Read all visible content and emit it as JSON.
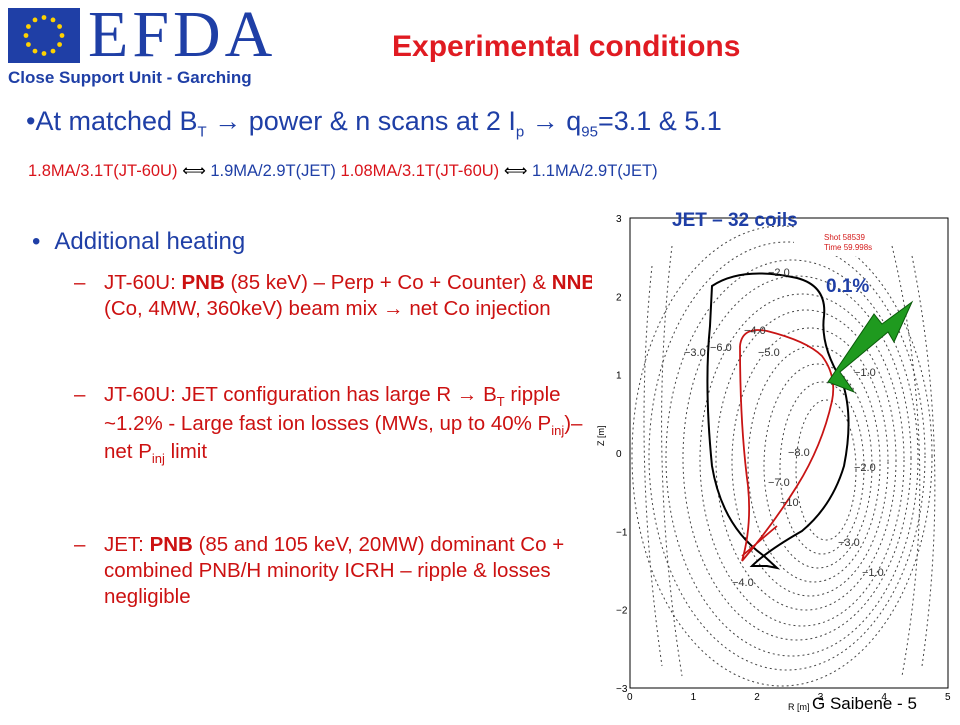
{
  "logo": {
    "word": "EFDA",
    "subtitle": "Close Support Unit - Garching",
    "flag_color": "#1f3fa6"
  },
  "title": "Experimental conditions",
  "lead": {
    "bullet": "•",
    "text_a": "At matched B",
    "sub_a": "T",
    "text_b": " power & n scans at 2 I",
    "sub_b": "p",
    "text_c": " q",
    "sub_c": "95",
    "text_d": "=3.1 & 5.1",
    "arrow": "→"
  },
  "scan_pairs": {
    "pair1_jt": "1.8MA/3.1T(JT-60U)",
    "pair1_jet": "1.9MA/2.9T(JET)",
    "pair2_jt": "1.08MA/3.1T(JT-60U)",
    "pair2_jet": "1.1MA/2.9T(JET)",
    "equiv": "⟺"
  },
  "heating": {
    "heading": "Additional heating",
    "bullet": "•",
    "dash": "–",
    "item1": {
      "a": "JT-60U: ",
      "b": "PNB",
      "c": " (85 keV) – Perp + Co + Counter) & ",
      "d": "NNB",
      "e": " (Co, 4MW, 360keV) beam mix ",
      "f": "net Co injection"
    },
    "item2": {
      "a": "JT-60U: JET configuration has large R ",
      "b": "B",
      "b_sub": "T",
      "c": " ripple ~1.2% - Large fast ion losses (MWs, up to 40% P",
      "c_sub": "inj",
      "d": ")– net P",
      "d_sub": "inj",
      "e": " limit"
    },
    "item3": {
      "a": "JET: ",
      "b": "PNB",
      "c": " (85 and 105 keV, 20MW) dominant Co + combined PNB/H minority ICRH – ripple & losses negligible"
    }
  },
  "plot": {
    "title": "JET – 32 coils",
    "annotation": "0.1%",
    "legend_line1": "Shot 58539",
    "legend_line2": "Time 59.998s",
    "xlabel": "R [m]",
    "ylabel": "Z [m]",
    "xticks": [
      "0",
      "1",
      "2",
      "3",
      "4",
      "5"
    ],
    "yticks": [
      "3",
      "2",
      "1",
      "0",
      "−1",
      "−2",
      "−3"
    ],
    "contour_labels": [
      "−2.0",
      "−1.0",
      "−3.0",
      "−4.0",
      "−5.0",
      "−6.0",
      "−7.0",
      "−8.0",
      "−10",
      "−1.0",
      "−2.0",
      "−3.0",
      "−4.0"
    ],
    "arrow_color": "#1f9a1f"
  },
  "footer": "G Saibene - 5"
}
